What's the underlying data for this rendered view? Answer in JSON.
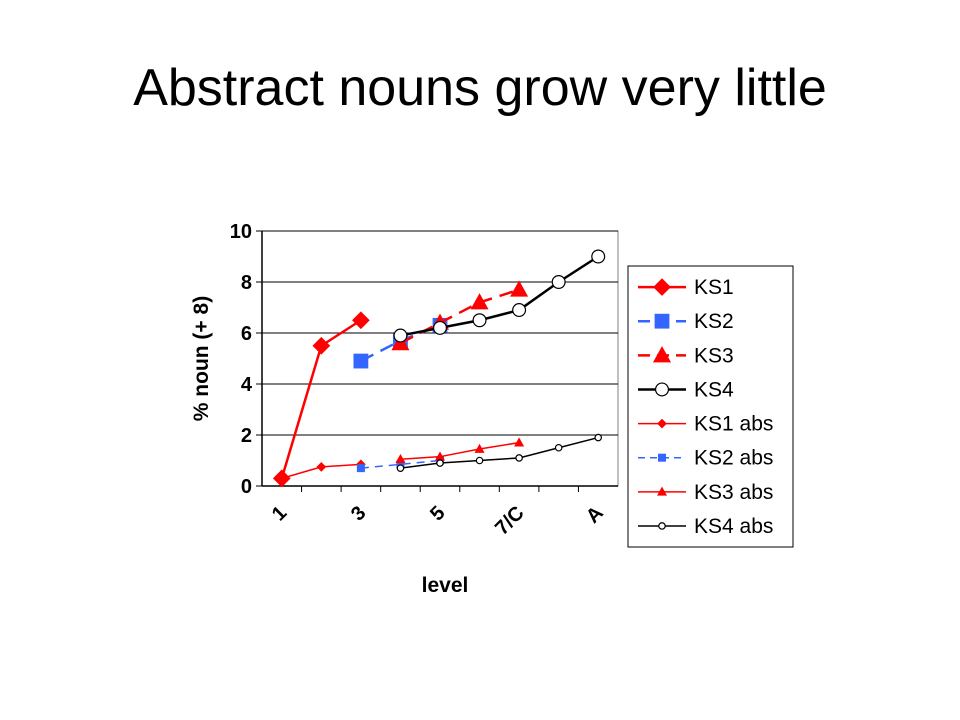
{
  "slide": {
    "title": "Abstract nouns grow very little"
  },
  "chart_data": {
    "type": "line",
    "title": "",
    "xlabel": "level",
    "ylabel": "% noun (+ 8)",
    "ylim": [
      0,
      10
    ],
    "yticks": [
      0,
      2,
      4,
      6,
      8,
      10
    ],
    "xlim": [
      0.5,
      9.5
    ],
    "x_tick_labels": [
      {
        "label": "1",
        "x": 1
      },
      {
        "label": "3",
        "x": 3
      },
      {
        "label": "5",
        "x": 5
      },
      {
        "label": "7/C",
        "x": 7
      },
      {
        "label": "A",
        "x": 9
      }
    ],
    "grid": "horizontal",
    "legend_position": "right",
    "series": [
      {
        "name": "KS1",
        "color": "#ff0000",
        "marker": "diamond",
        "marker_fill": "#ff0000",
        "dash": "solid",
        "large": true,
        "points": [
          [
            1,
            0.3
          ],
          [
            2,
            5.5
          ],
          [
            3,
            6.5
          ]
        ]
      },
      {
        "name": "KS2",
        "color": "#3366ff",
        "marker": "square",
        "marker_fill": "#3366ff",
        "dash": "dashed",
        "large": true,
        "points": [
          [
            3,
            4.9
          ],
          [
            4,
            5.7
          ],
          [
            5,
            6.3
          ]
        ]
      },
      {
        "name": "KS3",
        "color": "#ff0000",
        "marker": "triangle",
        "marker_fill": "#ff0000",
        "dash": "dashed",
        "large": true,
        "points": [
          [
            4,
            5.6
          ],
          [
            5,
            6.4
          ],
          [
            6,
            7.2
          ],
          [
            7,
            7.7
          ]
        ]
      },
      {
        "name": "KS4",
        "color": "#000000",
        "marker": "circle",
        "marker_fill": "#ffffff",
        "dash": "solid",
        "large": true,
        "points": [
          [
            4,
            5.9
          ],
          [
            5,
            6.2
          ],
          [
            6,
            6.5
          ],
          [
            7,
            6.9
          ],
          [
            8,
            8.0
          ],
          [
            9,
            9.0
          ]
        ]
      },
      {
        "name": "KS1 abs",
        "color": "#ff0000",
        "marker": "diamond",
        "marker_fill": "#ff0000",
        "dash": "solid",
        "large": false,
        "points": [
          [
            1,
            0.3
          ],
          [
            2,
            0.75
          ],
          [
            3,
            0.85
          ]
        ]
      },
      {
        "name": "KS2 abs",
        "color": "#3366ff",
        "marker": "square",
        "marker_fill": "#3366ff",
        "dash": "dashed",
        "large": false,
        "points": [
          [
            3,
            0.7
          ],
          [
            4,
            0.85
          ],
          [
            5,
            1.0
          ]
        ]
      },
      {
        "name": "KS3 abs",
        "color": "#ff0000",
        "marker": "triangle",
        "marker_fill": "#ff0000",
        "dash": "solid",
        "large": false,
        "points": [
          [
            4,
            1.05
          ],
          [
            5,
            1.15
          ],
          [
            6,
            1.45
          ],
          [
            7,
            1.7
          ]
        ]
      },
      {
        "name": "KS4 abs",
        "color": "#000000",
        "marker": "circle",
        "marker_fill": "#ffffff",
        "dash": "solid",
        "large": false,
        "points": [
          [
            4,
            0.7
          ],
          [
            5,
            0.9
          ],
          [
            6,
            1.0
          ],
          [
            7,
            1.1
          ],
          [
            8,
            1.5
          ],
          [
            9,
            1.9
          ]
        ]
      }
    ]
  }
}
